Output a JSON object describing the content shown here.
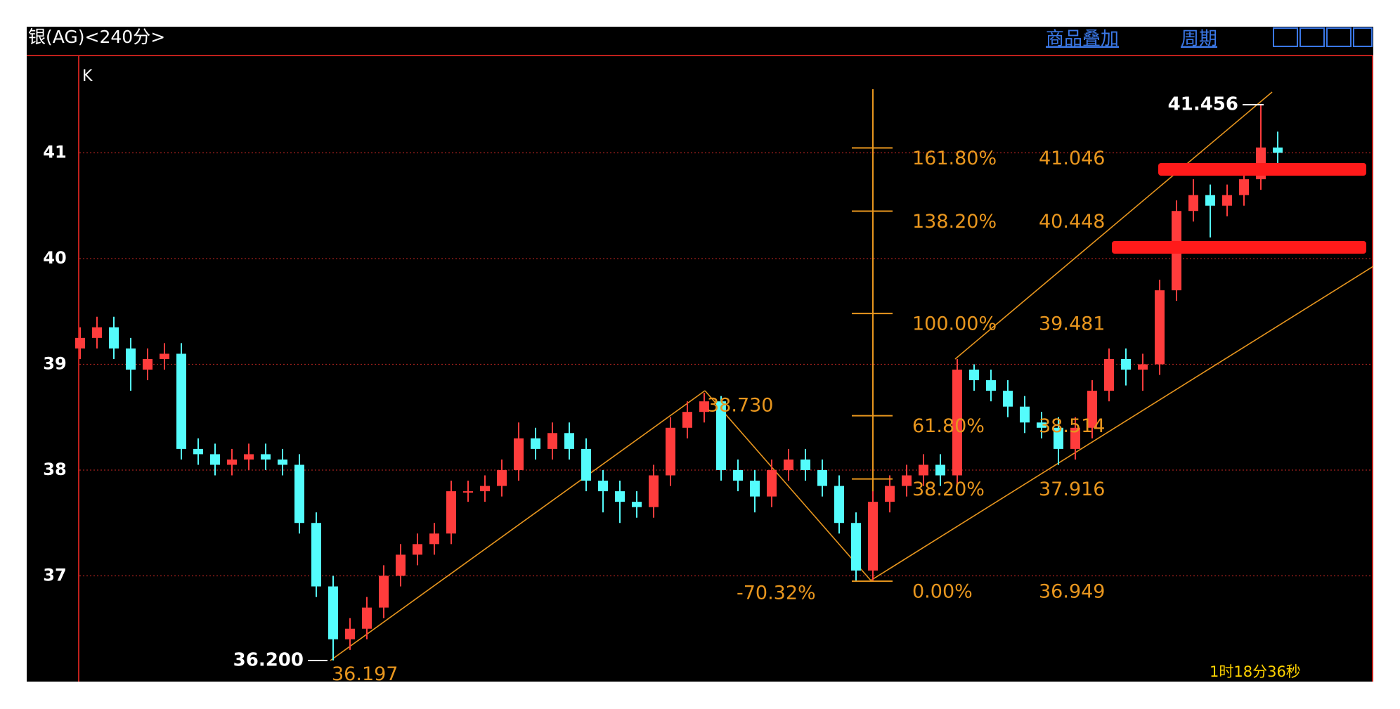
{
  "window": {
    "title": "银(AG)<240分>",
    "links": [
      "商品叠加",
      "周期"
    ],
    "panel_label": "K",
    "timer": "1时18分36秒"
  },
  "chart_data": {
    "type": "candlestick",
    "ylim": [
      36.0,
      41.92
    ],
    "yticks": [
      37,
      38,
      39,
      40,
      41
    ],
    "grid": true,
    "up_color": "#ff3c3c",
    "down_color": "#54fcfc",
    "open": [
      39.15,
      39.25,
      39.35,
      39.15,
      38.95,
      39.05,
      39.1,
      38.2,
      38.15,
      38.05,
      38.1,
      38.15,
      38.1,
      38.05,
      37.5,
      36.9,
      36.4,
      36.5,
      36.7,
      37.0,
      37.2,
      37.3,
      37.4,
      37.8,
      37.8,
      37.85,
      38.0,
      38.3,
      38.2,
      38.35,
      38.2,
      37.9,
      37.8,
      37.7,
      37.65,
      37.95,
      38.4,
      38.55,
      38.65,
      38.0,
      37.9,
      37.75,
      38.0,
      38.1,
      38.0,
      37.85,
      37.5,
      37.05,
      37.7,
      37.85,
      37.95,
      38.05,
      37.95,
      38.95,
      38.85,
      38.75,
      38.6,
      38.45,
      38.4,
      38.2,
      38.4,
      38.75,
      39.05,
      38.95,
      39.0,
      39.7,
      40.45,
      40.6,
      40.5,
      40.6,
      40.75,
      41.05
    ],
    "high": [
      39.35,
      39.45,
      39.45,
      39.25,
      39.15,
      39.2,
      39.2,
      38.3,
      38.25,
      38.2,
      38.25,
      38.25,
      38.2,
      38.15,
      37.6,
      37.0,
      36.6,
      36.8,
      37.1,
      37.3,
      37.4,
      37.5,
      37.9,
      37.9,
      37.95,
      38.1,
      38.45,
      38.4,
      38.45,
      38.45,
      38.3,
      38.0,
      37.9,
      37.8,
      38.05,
      38.5,
      38.65,
      38.73,
      38.7,
      38.1,
      38.0,
      38.1,
      38.2,
      38.2,
      38.1,
      37.95,
      37.6,
      37.8,
      37.95,
      38.05,
      38.15,
      38.15,
      39.05,
      39.0,
      38.95,
      38.85,
      38.7,
      38.55,
      38.5,
      38.5,
      38.85,
      39.15,
      39.15,
      39.1,
      39.8,
      40.55,
      40.75,
      40.7,
      40.7,
      40.85,
      41.456,
      41.2
    ],
    "low": [
      39.05,
      39.15,
      39.05,
      38.75,
      38.85,
      38.95,
      38.1,
      38.05,
      37.95,
      37.95,
      38.0,
      38.0,
      37.95,
      37.4,
      36.8,
      36.2,
      36.3,
      36.4,
      36.6,
      36.9,
      37.1,
      37.2,
      37.3,
      37.7,
      37.7,
      37.75,
      37.9,
      38.1,
      38.1,
      38.1,
      37.8,
      37.6,
      37.5,
      37.55,
      37.55,
      37.85,
      38.3,
      38.45,
      37.9,
      37.8,
      37.6,
      37.65,
      37.9,
      37.9,
      37.75,
      37.4,
      36.95,
      36.949,
      37.6,
      37.75,
      37.85,
      37.85,
      37.85,
      38.75,
      38.65,
      38.5,
      38.35,
      38.3,
      38.05,
      38.1,
      38.3,
      38.65,
      38.8,
      38.75,
      38.9,
      39.6,
      40.35,
      40.2,
      40.4,
      40.5,
      40.65,
      40.9
    ],
    "close": [
      39.25,
      39.35,
      39.15,
      38.95,
      39.05,
      39.1,
      38.2,
      38.15,
      38.05,
      38.1,
      38.15,
      38.1,
      38.05,
      37.5,
      36.9,
      36.4,
      36.5,
      36.7,
      37.0,
      37.2,
      37.3,
      37.4,
      37.8,
      37.8,
      37.85,
      38.0,
      38.3,
      38.2,
      38.35,
      38.2,
      37.9,
      37.8,
      37.7,
      37.65,
      37.95,
      38.4,
      38.55,
      38.65,
      38.0,
      37.9,
      37.75,
      38.0,
      38.1,
      38.0,
      37.85,
      37.5,
      37.05,
      37.7,
      37.85,
      37.95,
      38.05,
      37.95,
      38.95,
      38.85,
      38.75,
      38.6,
      38.45,
      38.4,
      38.2,
      38.4,
      38.75,
      39.05,
      38.95,
      39.0,
      39.7,
      40.45,
      40.6,
      40.5,
      40.6,
      40.75,
      41.05,
      41.0
    ],
    "fib_levels": [
      {
        "ratio_label": "161.80%",
        "price": 41.046
      },
      {
        "ratio_label": "138.20%",
        "price": 40.448
      },
      {
        "ratio_label": "100.00%",
        "price": 39.481
      },
      {
        "ratio_label": "61.80%",
        "price": 38.514
      },
      {
        "ratio_label": "38.20%",
        "price": 37.916
      },
      {
        "ratio_label": "0.00%",
        "price": 36.949
      }
    ],
    "annotations": [
      {
        "label": "36.200",
        "value": 36.2
      },
      {
        "label": "36.197",
        "value": 36.197
      },
      {
        "label": "38.730",
        "value": 38.73
      },
      {
        "label": "41.456",
        "value": 41.456
      }
    ],
    "retracement_label": "-70.32%"
  }
}
